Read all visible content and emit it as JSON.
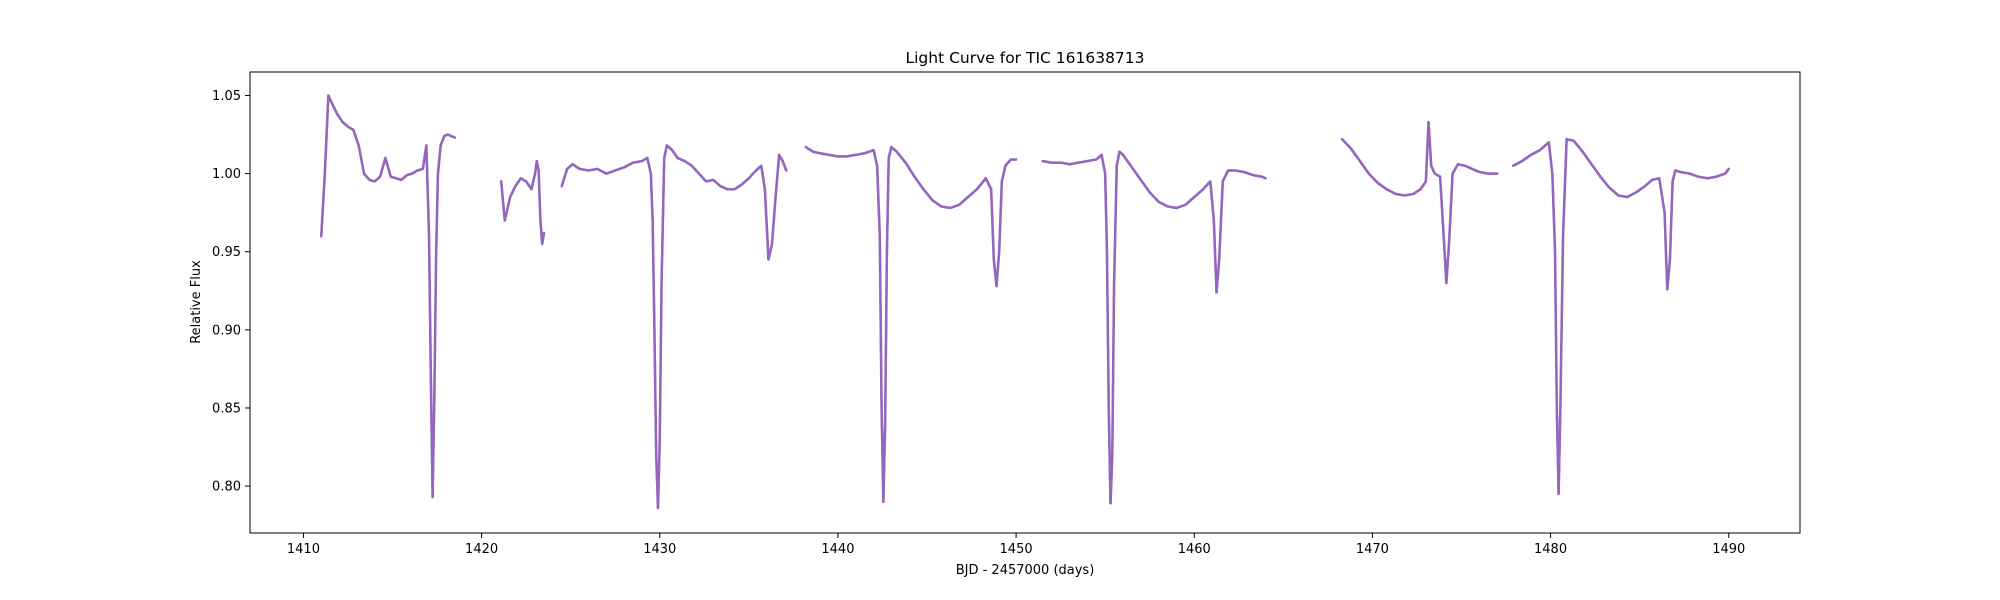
{
  "chart_data": {
    "type": "scatter",
    "title": "Light Curve for TIC 161638713",
    "xlabel": "BJD - 2457000 (days)",
    "ylabel": "Relative Flux",
    "xlim": [
      1407,
      1494
    ],
    "ylim": [
      0.77,
      1.065
    ],
    "grid": false,
    "legend": "none",
    "color": "#9467bd",
    "x_ticks": [
      1410,
      1420,
      1430,
      1440,
      1450,
      1460,
      1470,
      1480,
      1490
    ],
    "y_ticks": [
      0.8,
      0.85,
      0.9,
      0.95,
      1.0,
      1.05
    ],
    "series": [
      {
        "segments": [
          {
            "x": [
              1411.0,
              1411.2,
              1411.4,
              1411.6,
              1411.9,
              1412.2,
              1412.5,
              1412.8,
              1413.1,
              1413.4,
              1413.7,
              1414.0,
              1414.3,
              1414.6,
              1414.9,
              1415.2,
              1415.5,
              1415.8,
              1416.1,
              1416.4,
              1416.7,
              1416.9,
              1417.05,
              1417.15,
              1417.25,
              1417.35,
              1417.45,
              1417.55,
              1417.7,
              1417.9,
              1418.1,
              1418.3,
              1418.5
            ],
            "y": [
              0.96,
              1.0,
              1.05,
              1.045,
              1.038,
              1.033,
              1.03,
              1.028,
              1.018,
              1.0,
              0.996,
              0.995,
              0.998,
              1.01,
              0.998,
              0.997,
              0.996,
              0.999,
              1.0,
              1.002,
              1.003,
              1.018,
              0.96,
              0.87,
              0.793,
              0.86,
              0.95,
              1.0,
              1.018,
              1.024,
              1.025,
              1.024,
              1.023
            ]
          },
          {
            "x": [
              1421.1,
              1421.3,
              1421.6,
              1421.9,
              1422.2,
              1422.5,
              1422.8,
              1423.0,
              1423.1,
              1423.2,
              1423.3,
              1423.4,
              1423.5
            ],
            "y": [
              0.995,
              0.97,
              0.985,
              0.992,
              0.997,
              0.995,
              0.99,
              1.0,
              1.008,
              1.002,
              0.97,
              0.955,
              0.962
            ]
          },
          {
            "x": [
              1424.5,
              1424.8,
              1425.1,
              1425.5,
              1426.0,
              1426.5,
              1427.0,
              1427.5,
              1428.0,
              1428.5,
              1429.0,
              1429.3,
              1429.5,
              1429.6,
              1429.7,
              1429.8,
              1429.9,
              1430.0,
              1430.1,
              1430.25,
              1430.4,
              1430.7,
              1431.0,
              1431.4,
              1431.8,
              1432.2,
              1432.6,
              1433.0,
              1433.4,
              1433.8,
              1434.2,
              1434.6,
              1435.0,
              1435.4,
              1435.7,
              1435.9,
              1436.1,
              1436.3,
              1436.5,
              1436.7,
              1436.9,
              1437.1
            ],
            "y": [
              0.992,
              1.003,
              1.006,
              1.003,
              1.002,
              1.003,
              1.0,
              1.002,
              1.004,
              1.007,
              1.008,
              1.01,
              1.0,
              0.97,
              0.9,
              0.82,
              0.786,
              0.83,
              0.93,
              1.01,
              1.018,
              1.015,
              1.01,
              1.008,
              1.005,
              1.0,
              0.995,
              0.996,
              0.992,
              0.99,
              0.99,
              0.993,
              0.997,
              1.002,
              1.005,
              0.99,
              0.945,
              0.955,
              0.985,
              1.012,
              1.008,
              1.002
            ]
          },
          {
            "x": [
              1438.2,
              1438.6,
              1439.0,
              1439.5,
              1440.0,
              1440.5,
              1441.0,
              1441.5,
              1442.0,
              1442.2,
              1442.35,
              1442.45,
              1442.55,
              1442.65,
              1442.75,
              1442.85,
              1443.0,
              1443.3,
              1443.8,
              1444.3,
              1444.8,
              1445.3,
              1445.8,
              1446.3,
              1446.8,
              1447.3,
              1447.8,
              1448.3,
              1448.6,
              1448.75,
              1448.9,
              1449.05,
              1449.2,
              1449.4,
              1449.7,
              1450.0
            ],
            "y": [
              1.017,
              1.014,
              1.013,
              1.012,
              1.011,
              1.011,
              1.012,
              1.013,
              1.015,
              1.005,
              0.96,
              0.85,
              0.79,
              0.84,
              0.95,
              1.01,
              1.017,
              1.014,
              1.007,
              0.998,
              0.99,
              0.983,
              0.979,
              0.978,
              0.98,
              0.985,
              0.99,
              0.997,
              0.99,
              0.945,
              0.928,
              0.95,
              0.995,
              1.005,
              1.009,
              1.009
            ]
          },
          {
            "x": [
              1451.5,
              1452.0,
              1452.5,
              1453.0,
              1453.5,
              1454.0,
              1454.5,
              1454.8,
              1455.0,
              1455.1,
              1455.2,
              1455.3,
              1455.4,
              1455.5,
              1455.65,
              1455.8,
              1456.0,
              1456.5,
              1457.0,
              1457.5,
              1458.0,
              1458.5,
              1459.0,
              1459.5,
              1460.0,
              1460.5,
              1460.9,
              1461.1,
              1461.25,
              1461.4,
              1461.6,
              1461.9,
              1462.3,
              1462.8,
              1463.3,
              1463.8,
              1464.0
            ],
            "y": [
              1.008,
              1.007,
              1.007,
              1.006,
              1.007,
              1.008,
              1.009,
              1.012,
              1.0,
              0.95,
              0.85,
              0.789,
              0.82,
              0.93,
              1.005,
              1.014,
              1.012,
              1.004,
              0.996,
              0.988,
              0.982,
              0.979,
              0.978,
              0.98,
              0.985,
              0.99,
              0.995,
              0.97,
              0.924,
              0.945,
              0.995,
              1.002,
              1.002,
              1.001,
              0.999,
              0.998,
              0.997
            ]
          },
          {
            "x": [
              1468.3,
              1468.8,
              1469.3,
              1469.8,
              1470.3,
              1470.8,
              1471.3,
              1471.8,
              1472.3,
              1472.7,
              1473.0,
              1473.15,
              1473.3,
              1473.5,
              1473.8,
              1474.0,
              1474.15,
              1474.3,
              1474.5,
              1474.8,
              1475.2,
              1475.6,
              1476.0,
              1476.5,
              1477.0
            ],
            "y": [
              1.022,
              1.016,
              1.008,
              1.0,
              0.994,
              0.99,
              0.987,
              0.986,
              0.987,
              0.99,
              0.995,
              1.033,
              1.005,
              1.0,
              0.998,
              0.96,
              0.93,
              0.955,
              1.0,
              1.006,
              1.005,
              1.003,
              1.001,
              1.0,
              1.0
            ]
          },
          {
            "x": [
              1477.9,
              1478.4,
              1478.9,
              1479.4,
              1479.9,
              1480.1,
              1480.25,
              1480.35,
              1480.45,
              1480.55,
              1480.7,
              1480.9,
              1481.3,
              1481.8,
              1482.3,
              1482.8,
              1483.3,
              1483.8,
              1484.3,
              1484.8,
              1485.3,
              1485.7,
              1486.1,
              1486.4,
              1486.55,
              1486.7,
              1486.85,
              1487.0,
              1487.3,
              1487.8,
              1488.3,
              1488.8,
              1489.3,
              1489.8,
              1490.0
            ],
            "y": [
              1.005,
              1.008,
              1.012,
              1.015,
              1.02,
              1.0,
              0.95,
              0.85,
              0.795,
              0.85,
              0.96,
              1.022,
              1.021,
              1.014,
              1.006,
              0.998,
              0.991,
              0.986,
              0.985,
              0.988,
              0.992,
              0.996,
              0.997,
              0.975,
              0.926,
              0.945,
              0.995,
              1.002,
              1.001,
              1.0,
              0.998,
              0.997,
              0.998,
              1.0,
              1.003
            ]
          }
        ]
      }
    ]
  }
}
